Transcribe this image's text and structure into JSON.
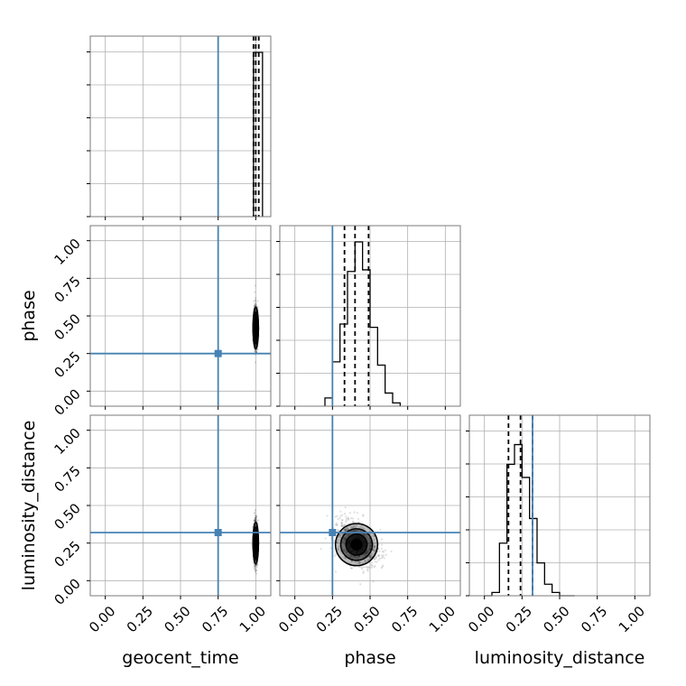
{
  "chart_data": {
    "type": "corner",
    "parameters": [
      "geocent_time",
      "phase",
      "luminosity_distance"
    ],
    "axis_range": [
      -0.1,
      1.1
    ],
    "ticks": [
      0.0,
      0.25,
      0.5,
      0.75,
      1.0
    ],
    "tick_labels": [
      "0.00",
      "0.25",
      "0.50",
      "0.75",
      "1.00"
    ],
    "grid": true,
    "truths": {
      "geocent_time": 0.75,
      "phase": 0.25,
      "luminosity_distance": 0.32
    },
    "colors": {
      "truth": "#4682b4",
      "hist": "#000000",
      "grid": "#b0b0b0"
    },
    "histograms": {
      "geocent_time": {
        "bins": [
          [
            0.985,
            1.045
          ]
        ],
        "counts": [
          1.0
        ],
        "quantiles": [
          0.985,
          1.0,
          1.02
        ]
      },
      "phase": {
        "bins": [
          [
            0.2,
            0.25,
            0.3,
            0.35,
            0.4,
            0.45,
            0.5,
            0.55,
            0.6,
            0.65,
            0.7
          ]
        ],
        "counts": [
          0.05,
          0.27,
          0.5,
          0.82,
          1.0,
          0.83,
          0.48,
          0.25,
          0.08,
          0.02
        ],
        "quantiles": [
          0.33,
          0.4,
          0.49
        ]
      },
      "luminosity_distance": {
        "bins": [
          [
            0.0,
            0.05,
            0.1,
            0.15,
            0.2,
            0.25,
            0.3,
            0.35,
            0.4,
            0.45,
            0.5,
            0.55,
            0.6
          ]
        ],
        "counts": [
          0.0,
          0.02,
          0.32,
          0.8,
          0.92,
          0.72,
          0.47,
          0.2,
          0.07,
          0.02,
          0.0,
          0.0
        ],
        "quantiles": [
          0.16,
          0.24,
          0.32
        ]
      }
    },
    "scatter_panels": [
      {
        "x": "geocent_time",
        "y": "phase",
        "x_center": 1.0,
        "y_center": 0.42,
        "x_spread": 0.006,
        "y_spread": 0.07
      },
      {
        "x": "geocent_time",
        "y": "luminosity_distance",
        "x_center": 1.0,
        "y_center": 0.25,
        "x_spread": 0.006,
        "y_spread": 0.07
      },
      {
        "x": "phase",
        "y": "luminosity_distance",
        "x_center": 0.41,
        "y_center": 0.24,
        "x_spread": 0.07,
        "y_spread": 0.07
      }
    ]
  }
}
